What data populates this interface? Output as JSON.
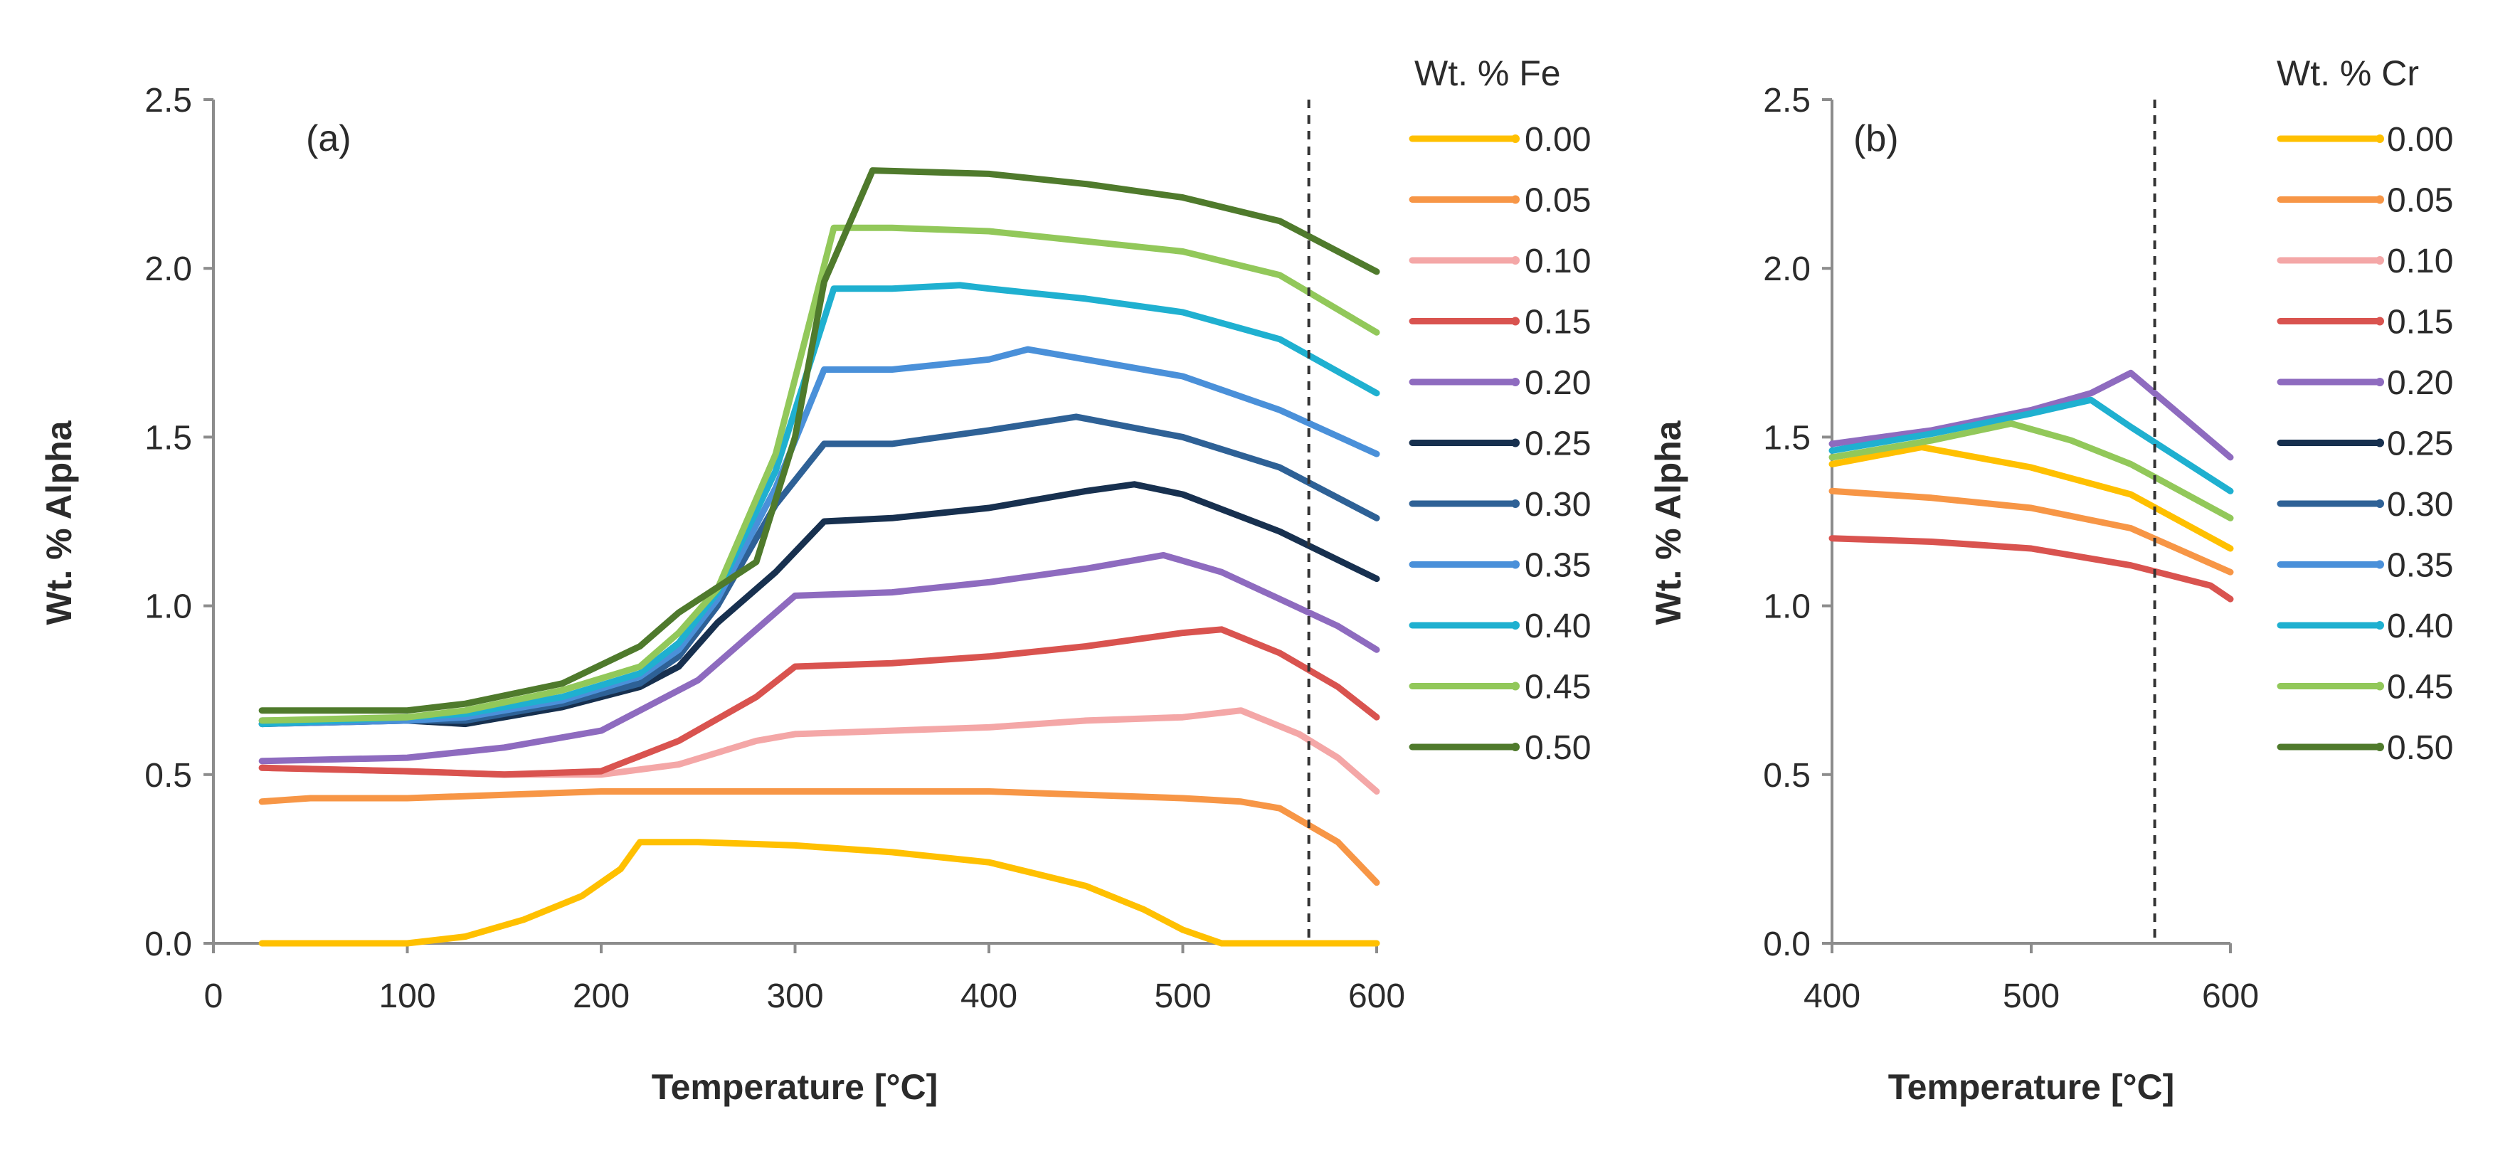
{
  "chart_data": [
    {
      "type": "line",
      "panel_label": "(a)",
      "xlabel": "Temperature [°C]",
      "ylabel": "Wt. % Alpha",
      "xlim": [
        0,
        600
      ],
      "ylim": [
        0,
        2.5
      ],
      "xticks": [
        0,
        100,
        200,
        300,
        400,
        500,
        600
      ],
      "yticks": [
        0.0,
        0.5,
        1.0,
        1.5,
        2.0,
        2.5
      ],
      "x_tick_labels": [
        "0",
        "100",
        "200",
        "300",
        "400",
        "500",
        "600"
      ],
      "y_tick_labels": [
        "0.0",
        "0.5",
        "1.0",
        "1.5",
        "2.0",
        "2.5"
      ],
      "reference_line_x": 565,
      "legend_title": "Wt. % Fe",
      "series": [
        {
          "name": "0.00",
          "color": "#FFC000",
          "x": [
            25,
            100,
            130,
            160,
            190,
            210,
            220,
            250,
            300,
            350,
            400,
            450,
            480,
            500,
            520,
            600
          ],
          "y": [
            0.0,
            0.0,
            0.02,
            0.07,
            0.14,
            0.22,
            0.3,
            0.3,
            0.29,
            0.27,
            0.24,
            0.17,
            0.1,
            0.04,
            0.0,
            0.0
          ]
        },
        {
          "name": "0.05",
          "color": "#F79646",
          "x": [
            25,
            50,
            100,
            150,
            200,
            250,
            300,
            350,
            400,
            450,
            500,
            530,
            550,
            580,
            600
          ],
          "y": [
            0.42,
            0.43,
            0.43,
            0.44,
            0.45,
            0.45,
            0.45,
            0.45,
            0.45,
            0.44,
            0.43,
            0.42,
            0.4,
            0.3,
            0.18
          ]
        },
        {
          "name": "0.10",
          "color": "#F4A7A7",
          "x": [
            25,
            100,
            150,
            200,
            240,
            280,
            300,
            350,
            400,
            450,
            500,
            530,
            560,
            580,
            600
          ],
          "y": [
            0.52,
            0.51,
            0.5,
            0.5,
            0.53,
            0.6,
            0.62,
            0.63,
            0.64,
            0.66,
            0.67,
            0.69,
            0.62,
            0.55,
            0.45
          ]
        },
        {
          "name": "0.15",
          "color": "#D9534F",
          "x": [
            25,
            100,
            150,
            200,
            240,
            280,
            300,
            350,
            400,
            450,
            500,
            520,
            550,
            580,
            600
          ],
          "y": [
            0.52,
            0.51,
            0.5,
            0.51,
            0.6,
            0.73,
            0.82,
            0.83,
            0.85,
            0.88,
            0.92,
            0.93,
            0.86,
            0.76,
            0.67
          ]
        },
        {
          "name": "0.20",
          "color": "#8E6BBF",
          "x": [
            25,
            100,
            150,
            200,
            250,
            300,
            350,
            400,
            450,
            490,
            520,
            550,
            580,
            600
          ],
          "y": [
            0.54,
            0.55,
            0.58,
            0.63,
            0.78,
            1.03,
            1.04,
            1.07,
            1.11,
            1.15,
            1.1,
            1.02,
            0.94,
            0.87
          ]
        },
        {
          "name": "0.25",
          "color": "#17304F",
          "x": [
            25,
            100,
            130,
            180,
            220,
            240,
            260,
            290,
            315,
            350,
            400,
            450,
            475,
            500,
            550,
            600
          ],
          "y": [
            0.65,
            0.66,
            0.65,
            0.7,
            0.76,
            0.82,
            0.95,
            1.1,
            1.25,
            1.26,
            1.29,
            1.34,
            1.36,
            1.33,
            1.22,
            1.08
          ]
        },
        {
          "name": "0.30",
          "color": "#2E6196",
          "x": [
            25,
            100,
            130,
            180,
            220,
            240,
            260,
            290,
            315,
            350,
            400,
            445,
            500,
            550,
            600
          ],
          "y": [
            0.66,
            0.66,
            0.66,
            0.71,
            0.77,
            0.85,
            1.0,
            1.3,
            1.48,
            1.48,
            1.52,
            1.56,
            1.5,
            1.41,
            1.26
          ]
        },
        {
          "name": "0.35",
          "color": "#4A90D9",
          "x": [
            25,
            100,
            130,
            180,
            220,
            240,
            260,
            290,
            315,
            350,
            400,
            420,
            450,
            500,
            550,
            600
          ],
          "y": [
            0.65,
            0.66,
            0.67,
            0.72,
            0.79,
            0.87,
            1.02,
            1.35,
            1.7,
            1.7,
            1.73,
            1.76,
            1.73,
            1.68,
            1.58,
            1.45
          ]
        },
        {
          "name": "0.40",
          "color": "#1FB0D0",
          "x": [
            25,
            100,
            130,
            180,
            220,
            240,
            260,
            290,
            320,
            350,
            385,
            400,
            450,
            500,
            550,
            600
          ],
          "y": [
            0.65,
            0.67,
            0.68,
            0.73,
            0.8,
            0.89,
            1.04,
            1.4,
            1.94,
            1.94,
            1.95,
            1.94,
            1.91,
            1.87,
            1.79,
            1.63
          ]
        },
        {
          "name": "0.45",
          "color": "#92C85A",
          "x": [
            25,
            100,
            130,
            180,
            220,
            240,
            260,
            290,
            320,
            350,
            400,
            450,
            500,
            550,
            600
          ],
          "y": [
            0.66,
            0.67,
            0.69,
            0.75,
            0.82,
            0.92,
            1.05,
            1.45,
            2.12,
            2.12,
            2.11,
            2.08,
            2.05,
            1.98,
            1.81
          ]
        },
        {
          "name": "0.50",
          "color": "#4F7A2C",
          "x": [
            25,
            100,
            130,
            180,
            220,
            240,
            280,
            300,
            315,
            340,
            400,
            450,
            500,
            550,
            600
          ],
          "y": [
            0.69,
            0.69,
            0.71,
            0.77,
            0.88,
            0.98,
            1.13,
            1.5,
            1.96,
            2.29,
            2.28,
            2.25,
            2.21,
            2.14,
            1.99
          ]
        }
      ]
    },
    {
      "type": "line",
      "panel_label": "(b)",
      "xlabel": "Temperature [°C]",
      "ylabel": "Wt. % Alpha",
      "xlim": [
        400,
        600
      ],
      "ylim": [
        0,
        2.5
      ],
      "xticks": [
        400,
        500,
        600
      ],
      "yticks": [
        0.0,
        0.5,
        1.0,
        1.5,
        2.0,
        2.5
      ],
      "x_tick_labels": [
        "400",
        "500",
        "600"
      ],
      "y_tick_labels": [
        "0.0",
        "0.5",
        "1.0",
        "1.5",
        "2.0",
        "2.5"
      ],
      "reference_line_x": 562,
      "legend_title": "Wt. % Cr",
      "series": [
        {
          "name": "0.00",
          "color": "#FFC000",
          "x": [
            400,
            445,
            500,
            550,
            600
          ],
          "y": [
            1.42,
            1.47,
            1.41,
            1.33,
            1.17
          ]
        },
        {
          "name": "0.05",
          "color": "#F79646",
          "x": [
            400,
            450,
            500,
            550,
            600
          ],
          "y": [
            1.34,
            1.32,
            1.29,
            1.23,
            1.1
          ]
        },
        {
          "name": "0.10",
          "color": "#F4A7A7",
          "x": [],
          "y": []
        },
        {
          "name": "0.15",
          "color": "#D9534F",
          "x": [
            400,
            450,
            500,
            550,
            590,
            600
          ],
          "y": [
            1.2,
            1.19,
            1.17,
            1.12,
            1.06,
            1.02
          ]
        },
        {
          "name": "0.20",
          "color": "#8E6BBF",
          "x": [
            400,
            450,
            500,
            530,
            550,
            600
          ],
          "y": [
            1.48,
            1.52,
            1.58,
            1.63,
            1.69,
            1.44
          ]
        },
        {
          "name": "0.25",
          "color": "#17304F",
          "x": [],
          "y": []
        },
        {
          "name": "0.30",
          "color": "#2E6196",
          "x": [],
          "y": []
        },
        {
          "name": "0.35",
          "color": "#4A90D9",
          "x": [],
          "y": []
        },
        {
          "name": "0.40",
          "color": "#1FB0D0",
          "x": [
            400,
            450,
            500,
            530,
            550,
            600
          ],
          "y": [
            1.46,
            1.51,
            1.57,
            1.61,
            1.53,
            1.34
          ]
        },
        {
          "name": "0.45",
          "color": "#92C85A",
          "x": [
            400,
            450,
            490,
            520,
            550,
            600
          ],
          "y": [
            1.44,
            1.49,
            1.54,
            1.49,
            1.42,
            1.26
          ]
        },
        {
          "name": "0.50",
          "color": "#4F7A2C",
          "x": [],
          "y": []
        }
      ]
    }
  ]
}
